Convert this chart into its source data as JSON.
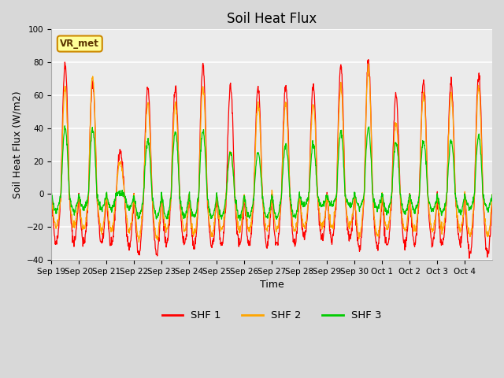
{
  "title": "Soil Heat Flux",
  "xlabel": "Time",
  "ylabel": "Soil Heat Flux (W/m2)",
  "ylim": [
    -40,
    100
  ],
  "yticks": [
    -40,
    -20,
    0,
    20,
    40,
    60,
    80,
    100
  ],
  "x_tick_labels": [
    "Sep 19",
    "Sep 20",
    "Sep 21",
    "Sep 22",
    "Sep 23",
    "Sep 24",
    "Sep 25",
    "Sep 26",
    "Sep 27",
    "Sep 28",
    "Sep 29",
    "Sep 30",
    "Oct 1",
    "Oct 2",
    "Oct 3",
    "Oct 4"
  ],
  "legend_labels": [
    "SHF 1",
    "SHF 2",
    "SHF 3"
  ],
  "line_colors": [
    "#ff0000",
    "#ffa500",
    "#00cc00"
  ],
  "annotation_text": "VR_met",
  "fig_bg_color": "#d8d8d8",
  "plot_bg_color": "#ebebeb",
  "n_days": 16,
  "points_per_day": 96,
  "shf1_peaks": [
    79,
    68,
    26,
    65,
    65,
    79,
    65,
    65,
    65,
    65,
    77,
    80,
    60,
    68,
    68,
    72
  ],
  "shf1_valleys": [
    29,
    30,
    32,
    37,
    30,
    32,
    31,
    31,
    31,
    27,
    27,
    33,
    32,
    30,
    30,
    37
  ],
  "shf2_peaks": [
    65,
    71,
    20,
    55,
    55,
    65,
    25,
    55,
    55,
    55,
    65,
    77,
    42,
    60,
    60,
    65
  ],
  "shf2_valleys": [
    20,
    22,
    22,
    27,
    22,
    25,
    22,
    22,
    22,
    20,
    20,
    25,
    22,
    22,
    22,
    25
  ],
  "shf3_peaks": [
    40,
    39,
    0,
    32,
    38,
    38,
    25,
    25,
    30,
    30,
    38,
    40,
    32,
    32,
    32,
    35
  ],
  "shf3_valleys": [
    15,
    14,
    14,
    19,
    19,
    19,
    19,
    19,
    19,
    12,
    12,
    13,
    16,
    15,
    16,
    14
  ]
}
